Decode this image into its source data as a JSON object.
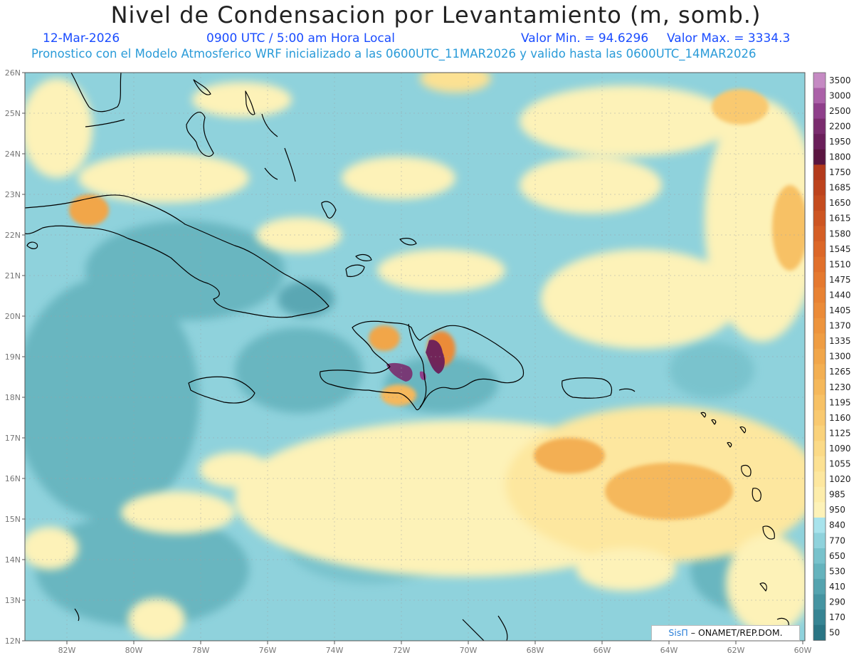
{
  "header": {
    "title": "Nivel de Condensacion por Levantamiento (m, somb.)",
    "date": "12-Mar-2026",
    "time": "0900 UTC / 5:00 am Hora Local",
    "min_label": "Valor Min. = 94.6296",
    "max_label": "Valor Max. = 3334.3",
    "model_line": "Pronostico con el Modelo Atmosferico WRF inicializado a las 0600UTC_11MAR2026 y valido hasta las  0600UTC_14MAR2026"
  },
  "map": {
    "lon_range": [
      -83.2,
      -60
    ],
    "lat_range": [
      12,
      26
    ],
    "lon_ticks": [
      "82W",
      "80W",
      "78W",
      "76W",
      "74W",
      "72W",
      "70W",
      "68W",
      "66W",
      "64W",
      "62W",
      "60W"
    ],
    "lat_ticks": [
      "26N",
      "25N",
      "24N",
      "23N",
      "22N",
      "21N",
      "20N",
      "19N",
      "18N",
      "17N",
      "16N",
      "15N",
      "14N",
      "13N",
      "12N"
    ],
    "credit": {
      "brand": "SisΠ",
      "org": "– ONAMET/REP.DOM."
    }
  },
  "colorbar": {
    "levels": [
      "3500",
      "3000",
      "2500",
      "2200",
      "1950",
      "1800",
      "1750",
      "1685",
      "1650",
      "1615",
      "1580",
      "1545",
      "1510",
      "1475",
      "1440",
      "1405",
      "1370",
      "1335",
      "1300",
      "1265",
      "1230",
      "1195",
      "1160",
      "1125",
      "1090",
      "1055",
      "1020",
      "985",
      "950",
      "840",
      "770",
      "650",
      "530",
      "410",
      "290",
      "170",
      "50"
    ],
    "colors": [
      "#c58ac3",
      "#ab61a8",
      "#8f3f8b",
      "#7a2c6e",
      "#6a1f5a",
      "#5a1540",
      "#b33a1c",
      "#bd431d",
      "#c54c1f",
      "#cd5522",
      "#d55e25",
      "#dc6728",
      "#e1702b",
      "#e5792f",
      "#e88233",
      "#eb8b38",
      "#ed943d",
      "#ef9d43",
      "#f1a64a",
      "#f3af52",
      "#f5b85b",
      "#f7c165",
      "#f9c970",
      "#fad27b",
      "#fbda87",
      "#fce193",
      "#fde79f",
      "#fdedab",
      "#fdf2b8",
      "#a8e3ec",
      "#8fd2dc",
      "#78c2cc",
      "#65b3bd",
      "#54a3af",
      "#4594a1",
      "#368493",
      "#2a7584"
    ]
  }
}
